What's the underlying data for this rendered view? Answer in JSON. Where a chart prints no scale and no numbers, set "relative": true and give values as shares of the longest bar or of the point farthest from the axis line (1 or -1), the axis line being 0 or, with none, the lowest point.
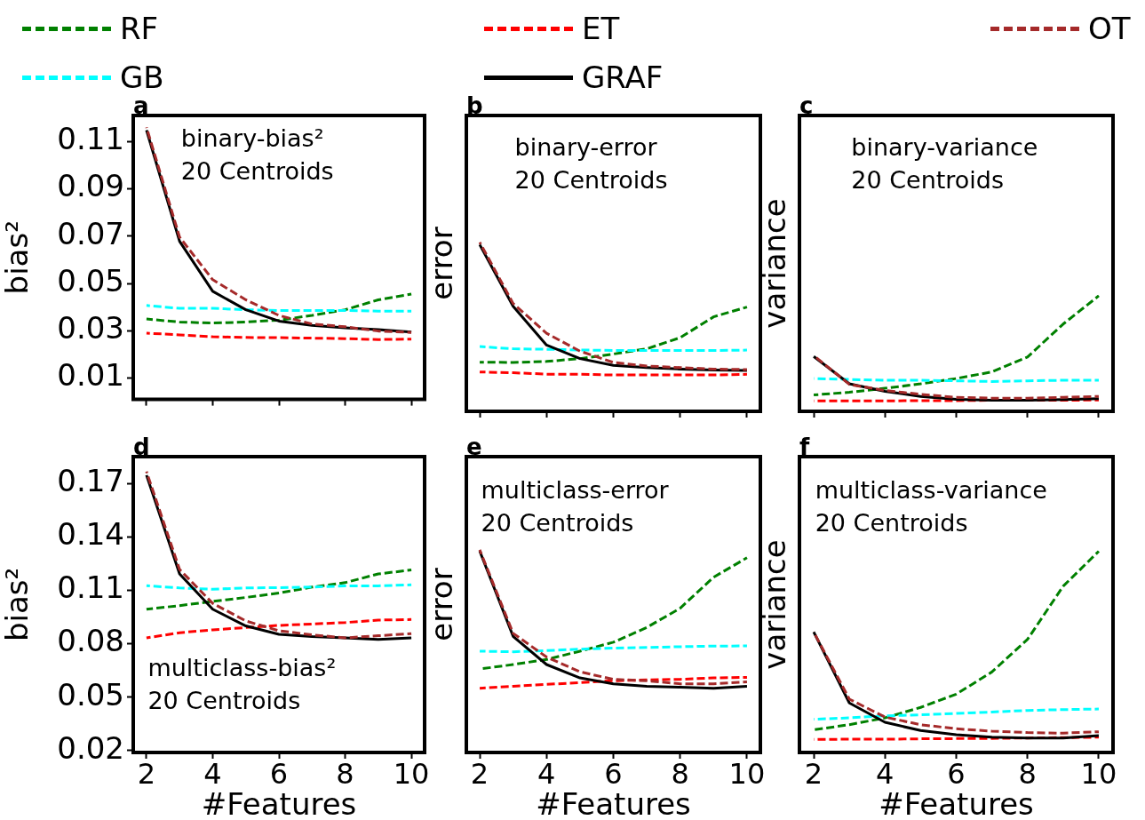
{
  "chart_data": [
    {
      "type": "line",
      "title": "a",
      "ylabel": "bias²",
      "annotations": [
        "binary-bias²",
        "20 Centroids"
      ],
      "x": [
        2,
        3,
        4,
        5,
        6,
        7,
        8,
        9,
        10
      ],
      "xlim": [
        1.6,
        10.4
      ],
      "xticks": [
        2,
        4,
        6,
        8,
        10
      ],
      "ylim": [
        0.001,
        0.121
      ],
      "yticks": [
        0.01,
        0.03,
        0.05,
        0.07,
        0.09,
        0.11
      ],
      "tick_labels": "y",
      "legend": "top",
      "marker": "none",
      "series": [
        {
          "name": "RF",
          "color": "#008000",
          "line_style": "dashed",
          "values": [
            0.035,
            0.0337,
            0.0333,
            0.0337,
            0.0345,
            0.0365,
            0.0389,
            0.0431,
            0.0455
          ]
        },
        {
          "name": "GB",
          "color": "#00ffff",
          "line_style": "dashed",
          "values": [
            0.0407,
            0.0395,
            0.0395,
            0.0389,
            0.0386,
            0.0386,
            0.0386,
            0.0383,
            0.0383
          ]
        },
        {
          "name": "ET",
          "color": "#ff0000",
          "line_style": "dashed",
          "values": [
            0.029,
            0.0283,
            0.0275,
            0.0272,
            0.0271,
            0.0269,
            0.0267,
            0.0263,
            0.0265
          ]
        },
        {
          "name": "GRAF",
          "color": "#000000",
          "line_style": "solid",
          "values": [
            0.1148,
            0.0678,
            0.0467,
            0.0389,
            0.0341,
            0.0323,
            0.0313,
            0.0305,
            0.0295
          ]
        },
        {
          "name": "OT",
          "color": "#a52a2a",
          "line_style": "dashed",
          "values": [
            0.116,
            0.0696,
            0.0516,
            0.0431,
            0.0365,
            0.0329,
            0.0317,
            0.0299,
            0.0293
          ]
        }
      ]
    },
    {
      "type": "line",
      "title": "b",
      "ylabel": "error",
      "annotations": [
        "binary-error",
        "20 Centroids"
      ],
      "x": [
        2,
        3,
        4,
        5,
        6,
        7,
        8,
        9,
        10
      ],
      "xlim": [
        1.6,
        10.4
      ],
      "xticks": [
        2,
        4,
        6,
        8,
        10
      ],
      "relative": true,
      "tick_labels": false,
      "marker": "none",
      "series": [
        {
          "color": "#008000",
          "line_style": "dashed",
          "values": [
            0.291,
            0.289,
            0.295,
            0.312,
            0.339,
            0.37,
            0.436,
            0.559,
            0.617
          ]
        },
        {
          "color": "#00ffff",
          "line_style": "dashed",
          "values": [
            0.383,
            0.37,
            0.367,
            0.363,
            0.36,
            0.36,
            0.36,
            0.36,
            0.362
          ]
        },
        {
          "color": "#ff0000",
          "line_style": "dashed",
          "values": [
            0.233,
            0.228,
            0.22,
            0.219,
            0.215,
            0.215,
            0.215,
            0.215,
            0.219
          ]
        },
        {
          "color": "#000000",
          "line_style": "solid",
          "values": [
            0.986,
            0.621,
            0.392,
            0.312,
            0.272,
            0.259,
            0.25,
            0.245,
            0.242
          ]
        },
        {
          "color": "#a52a2a",
          "line_style": "dashed",
          "values": [
            1.0,
            0.638,
            0.462,
            0.356,
            0.289,
            0.268,
            0.259,
            0.25,
            0.247
          ]
        }
      ]
    },
    {
      "type": "line",
      "title": "c",
      "ylabel": "variance",
      "annotations": [
        "binary-variance",
        "20 Centroids"
      ],
      "x": [
        2,
        3,
        4,
        5,
        6,
        7,
        8,
        9,
        10
      ],
      "xlim": [
        1.6,
        10.4
      ],
      "xticks": [
        2,
        4,
        6,
        8,
        10
      ],
      "relative": true,
      "tick_labels": false,
      "marker": "none",
      "series": [
        {
          "color": "#008000",
          "line_style": "dashed",
          "values": [
            0.142,
            0.165,
            0.199,
            0.238,
            0.284,
            0.341,
            0.47,
            0.755,
            1.0
          ]
        },
        {
          "color": "#00ffff",
          "line_style": "dashed",
          "values": [
            0.284,
            0.276,
            0.269,
            0.269,
            0.264,
            0.258,
            0.264,
            0.269,
            0.269
          ]
        },
        {
          "color": "#ff0000",
          "line_style": "dashed",
          "values": [
            0.09,
            0.09,
            0.09,
            0.093,
            0.093,
            0.096,
            0.096,
            0.096,
            0.098
          ]
        },
        {
          "color": "#000000",
          "line_style": "solid",
          "values": [
            0.475,
            0.238,
            0.173,
            0.129,
            0.103,
            0.096,
            0.096,
            0.101,
            0.109
          ]
        },
        {
          "color": "#a52a2a",
          "line_style": "dashed",
          "values": [
            0.483,
            0.233,
            0.181,
            0.147,
            0.121,
            0.114,
            0.114,
            0.121,
            0.129
          ]
        }
      ]
    },
    {
      "type": "line",
      "title": "d",
      "xlabel": "#Features",
      "ylabel": "bias²",
      "annotations": [
        "multiclass-bias²",
        "20 Centroids"
      ],
      "x": [
        2,
        3,
        4,
        5,
        6,
        7,
        8,
        9,
        10
      ],
      "xlim": [
        1.6,
        10.4
      ],
      "xticks": [
        2,
        4,
        6,
        8,
        10
      ],
      "ylim": [
        0.019,
        0.185
      ],
      "yticks": [
        0.02,
        0.05,
        0.08,
        0.11,
        0.14,
        0.17
      ],
      "marker": "none",
      "series": [
        {
          "color": "#008000",
          "line_style": "dashed",
          "values": [
            0.0994,
            0.1014,
            0.1038,
            0.106,
            0.1085,
            0.1118,
            0.1143,
            0.1192,
            0.1214
          ]
        },
        {
          "color": "#00ffff",
          "line_style": "dashed",
          "values": [
            0.1126,
            0.1113,
            0.1106,
            0.1113,
            0.1115,
            0.1118,
            0.1125,
            0.1125,
            0.1131
          ]
        },
        {
          "color": "#ff0000",
          "line_style": "dashed",
          "values": [
            0.0833,
            0.0862,
            0.0878,
            0.0891,
            0.0903,
            0.0911,
            0.0919,
            0.0933,
            0.0936
          ]
        },
        {
          "color": "#000000",
          "line_style": "solid",
          "values": [
            0.1746,
            0.1192,
            0.0994,
            0.09,
            0.0853,
            0.084,
            0.0833,
            0.0824,
            0.0833
          ]
        },
        {
          "color": "#a52a2a",
          "line_style": "dashed",
          "values": [
            0.1766,
            0.1217,
            0.1027,
            0.0928,
            0.0873,
            0.085,
            0.0833,
            0.0845,
            0.0857
          ]
        }
      ]
    },
    {
      "type": "line",
      "title": "e",
      "xlabel": "#Features",
      "ylabel": "error",
      "annotations": [
        "multiclass-error",
        "20 Centroids"
      ],
      "x": [
        2,
        3,
        4,
        5,
        6,
        7,
        8,
        9,
        10
      ],
      "xlim": [
        1.6,
        10.4
      ],
      "xticks": [
        2,
        4,
        6,
        8,
        10
      ],
      "relative": true,
      "tick_labels": "x",
      "marker": "none",
      "series": [
        {
          "color": "#008000",
          "line_style": "dashed",
          "values": [
            0.412,
            0.434,
            0.459,
            0.5,
            0.544,
            0.617,
            0.712,
            0.865,
            0.961
          ]
        },
        {
          "color": "#00ffff",
          "line_style": "dashed",
          "values": [
            0.5,
            0.497,
            0.503,
            0.51,
            0.515,
            0.518,
            0.522,
            0.525,
            0.526
          ]
        },
        {
          "color": "#ff0000",
          "line_style": "dashed",
          "values": [
            0.317,
            0.327,
            0.336,
            0.345,
            0.354,
            0.358,
            0.361,
            0.368,
            0.371
          ]
        },
        {
          "color": "#000000",
          "line_style": "solid",
          "values": [
            0.994,
            0.573,
            0.434,
            0.368,
            0.339,
            0.327,
            0.322,
            0.317,
            0.327
          ]
        },
        {
          "color": "#a52a2a",
          "line_style": "dashed",
          "values": [
            1.0,
            0.588,
            0.471,
            0.398,
            0.361,
            0.354,
            0.339,
            0.339,
            0.349
          ]
        }
      ]
    },
    {
      "type": "line",
      "title": "f",
      "xlabel": "#Features",
      "ylabel": "variance",
      "annotations": [
        "multiclass-variance",
        "20 Centroids"
      ],
      "x": [
        2,
        3,
        4,
        5,
        6,
        7,
        8,
        9,
        10
      ],
      "xlim": [
        1.6,
        10.4
      ],
      "xticks": [
        2,
        4,
        6,
        8,
        10
      ],
      "relative": true,
      "tick_labels": "x",
      "marker": "none",
      "series": [
        {
          "color": "#008000",
          "line_style": "dashed",
          "values": [
            0.113,
            0.138,
            0.172,
            0.224,
            0.29,
            0.4,
            0.562,
            0.826,
            1.0
          ]
        },
        {
          "color": "#00ffff",
          "line_style": "dashed",
          "values": [
            0.165,
            0.172,
            0.182,
            0.187,
            0.194,
            0.201,
            0.209,
            0.213,
            0.216
          ]
        },
        {
          "color": "#ff0000",
          "line_style": "dashed",
          "values": [
            0.065,
            0.066,
            0.066,
            0.068,
            0.069,
            0.07,
            0.072,
            0.074,
            0.076
          ]
        },
        {
          "color": "#000000",
          "line_style": "solid",
          "values": [
            0.599,
            0.246,
            0.15,
            0.109,
            0.088,
            0.076,
            0.072,
            0.072,
            0.084
          ]
        },
        {
          "color": "#a52a2a",
          "line_style": "dashed",
          "values": [
            0.599,
            0.265,
            0.176,
            0.138,
            0.118,
            0.106,
            0.099,
            0.096,
            0.103
          ]
        }
      ]
    }
  ]
}
